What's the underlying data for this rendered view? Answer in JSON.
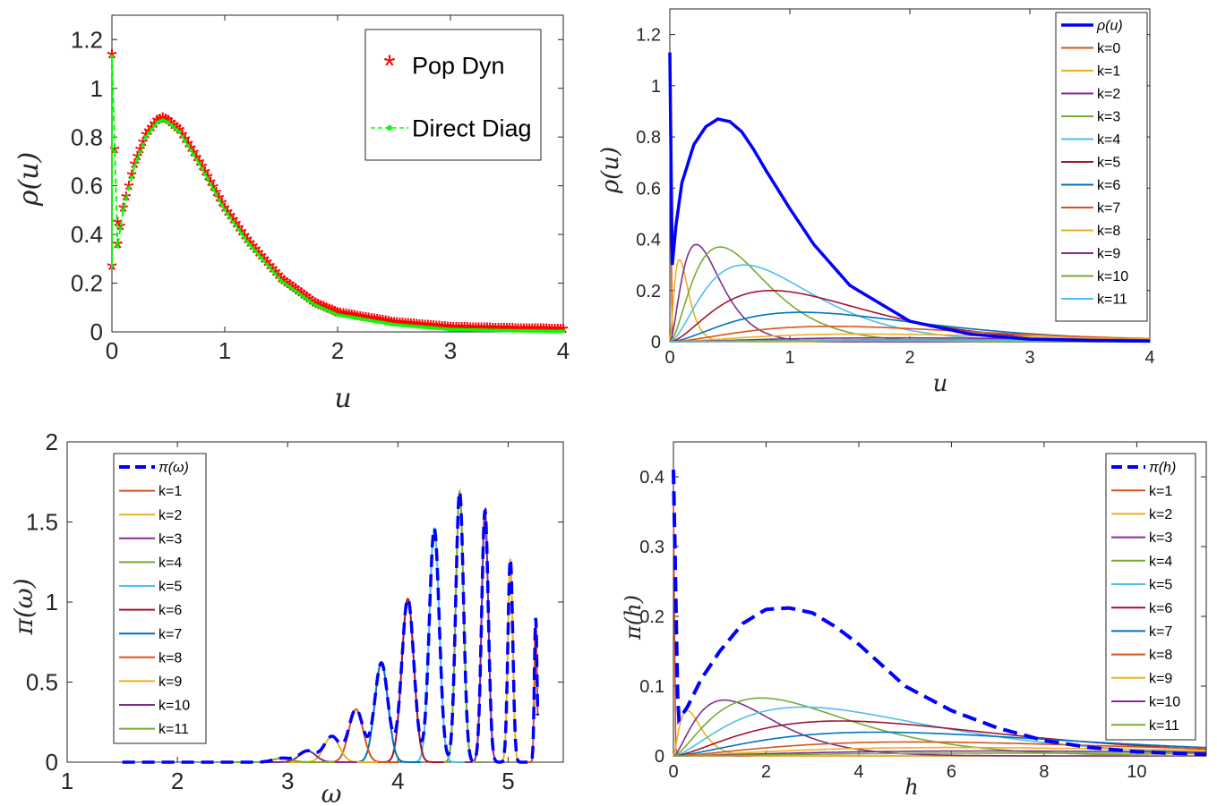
{
  "figure": {
    "palette": [
      "#D95319",
      "#EDB120",
      "#7E2F8E",
      "#77AC30",
      "#4DBEEE",
      "#A2142F",
      "#0072BD"
    ]
  },
  "chart_data": [
    {
      "type": "line",
      "xlabel": "u",
      "ylabel": "ρ(u)",
      "xlim": [
        0,
        4
      ],
      "ylim": [
        0,
        1.3
      ],
      "xticks": [
        "0",
        "1",
        "2",
        "3",
        "4"
      ],
      "yticks": [
        "0",
        "0.2",
        "0.4",
        "0.6",
        "0.8",
        "1",
        "1.2"
      ],
      "grid": false,
      "legend_position": "top-right",
      "series": [
        {
          "name": "Pop Dyn",
          "style": "red-asterisk-markers",
          "color": "#FF0000",
          "x": [
            0,
            0.05,
            0.1,
            0.2,
            0.3,
            0.4,
            0.45,
            0.5,
            0.6,
            0.8,
            1.0,
            1.2,
            1.5,
            1.8,
            2.0,
            2.5,
            3.0,
            3.5,
            4.0
          ],
          "y": [
            1.13,
            0.35,
            0.5,
            0.68,
            0.8,
            0.86,
            0.87,
            0.86,
            0.82,
            0.67,
            0.5,
            0.37,
            0.21,
            0.11,
            0.07,
            0.03,
            0.01,
            0.005,
            0.002
          ]
        },
        {
          "name": "Direct Diag",
          "style": "green-dashed-dots",
          "color": "#00FF00",
          "x": [
            0,
            0.05,
            0.1,
            0.2,
            0.3,
            0.4,
            0.45,
            0.5,
            0.6,
            0.8,
            1.0,
            1.2,
            1.5,
            1.8,
            2.0,
            2.5,
            3.0,
            3.5,
            4.0
          ],
          "y": [
            1.13,
            0.35,
            0.5,
            0.68,
            0.8,
            0.86,
            0.87,
            0.86,
            0.82,
            0.67,
            0.5,
            0.37,
            0.21,
            0.11,
            0.07,
            0.03,
            0.01,
            0.005,
            0.002
          ]
        }
      ]
    },
    {
      "type": "line",
      "xlabel": "u",
      "ylabel": "ρ(u)",
      "xlim": [
        0,
        4
      ],
      "ylim": [
        0,
        1.3
      ],
      "xticks": [
        "0",
        "1",
        "2",
        "3",
        "4"
      ],
      "yticks": [
        "0",
        "0.2",
        "0.4",
        "0.6",
        "0.8",
        "1",
        "1.2"
      ],
      "grid": false,
      "legend_position": "top-right",
      "total": {
        "name": "ρ(u)",
        "color": "#0000FF",
        "x": [
          0,
          0.02,
          0.05,
          0.1,
          0.2,
          0.3,
          0.4,
          0.5,
          0.6,
          0.7,
          0.8,
          1.0,
          1.2,
          1.5,
          2.0,
          2.5,
          3.0,
          3.5,
          4.0
        ],
        "y": [
          1.13,
          0.3,
          0.45,
          0.62,
          0.77,
          0.84,
          0.87,
          0.86,
          0.82,
          0.75,
          0.67,
          0.52,
          0.38,
          0.22,
          0.08,
          0.03,
          0.01,
          0.005,
          0.002
        ]
      },
      "components": [
        {
          "name": "k=0",
          "peak_x": 0,
          "peak_y": 0.92
        },
        {
          "name": "k=1",
          "peak_x": 0.08,
          "peak_y": 0.32
        },
        {
          "name": "k=2",
          "peak_x": 0.22,
          "peak_y": 0.38
        },
        {
          "name": "k=3",
          "peak_x": 0.42,
          "peak_y": 0.37
        },
        {
          "name": "k=4",
          "peak_x": 0.62,
          "peak_y": 0.3
        },
        {
          "name": "k=5",
          "peak_x": 0.85,
          "peak_y": 0.2
        },
        {
          "name": "k=6",
          "peak_x": 1.1,
          "peak_y": 0.115
        },
        {
          "name": "k=7",
          "peak_x": 1.35,
          "peak_y": 0.06
        },
        {
          "name": "k=8",
          "peak_x": 1.6,
          "peak_y": 0.03
        },
        {
          "name": "k=9",
          "peak_x": 1.85,
          "peak_y": 0.015
        },
        {
          "name": "k=10",
          "peak_x": 2.1,
          "peak_y": 0.008
        },
        {
          "name": "k=11",
          "peak_x": 2.35,
          "peak_y": 0.004
        }
      ]
    },
    {
      "type": "line",
      "xlabel": "ω",
      "ylabel": "π(ω)",
      "xlim": [
        1,
        5.5
      ],
      "ylim": [
        0,
        2
      ],
      "xticks": [
        "1",
        "2",
        "3",
        "4",
        "5"
      ],
      "yticks": [
        "0",
        "0.5",
        "1",
        "1.5",
        "2"
      ],
      "grid": false,
      "legend_position": "top-left",
      "total": {
        "name": "π(ω)",
        "color": "#0000FF",
        "style": "dashed",
        "x_start": 1.5,
        "x_end": 5.27
      },
      "components": [
        {
          "name": "k=1",
          "peak_x": 5.25,
          "peak_y": 0.9,
          "width": 0.012
        },
        {
          "name": "k=2",
          "peak_x": 5.02,
          "peak_y": 1.27,
          "width": 0.022
        },
        {
          "name": "k=3",
          "peak_x": 4.79,
          "peak_y": 1.57,
          "width": 0.03
        },
        {
          "name": "k=4",
          "peak_x": 4.56,
          "peak_y": 1.69,
          "width": 0.035
        },
        {
          "name": "k=5",
          "peak_x": 4.33,
          "peak_y": 1.46,
          "width": 0.045
        },
        {
          "name": "k=6",
          "peak_x": 4.09,
          "peak_y": 1.02,
          "width": 0.055
        },
        {
          "name": "k=7",
          "peak_x": 3.85,
          "peak_y": 0.62,
          "width": 0.06
        },
        {
          "name": "k=8",
          "peak_x": 3.62,
          "peak_y": 0.33,
          "width": 0.065
        },
        {
          "name": "k=9",
          "peak_x": 3.4,
          "peak_y": 0.16,
          "width": 0.07
        },
        {
          "name": "k=10",
          "peak_x": 3.18,
          "peak_y": 0.07,
          "width": 0.075
        },
        {
          "name": "k=11",
          "peak_x": 2.95,
          "peak_y": 0.025,
          "width": 0.08
        }
      ]
    },
    {
      "type": "line",
      "xlabel": "h",
      "ylabel": "π(h)",
      "xlim": [
        0,
        11.5
      ],
      "ylim": [
        0,
        0.45
      ],
      "xticks": [
        "0",
        "2",
        "4",
        "6",
        "8",
        "10"
      ],
      "yticks": [
        "0",
        "0.1",
        "0.2",
        "0.3",
        "0.4"
      ],
      "grid": false,
      "legend_position": "top-right",
      "total": {
        "name": "π(h)",
        "color": "#0000FF",
        "style": "dashed",
        "x": [
          0,
          0.1,
          0.3,
          0.6,
          1.0,
          1.5,
          2.0,
          2.5,
          3.0,
          3.5,
          4.0,
          4.5,
          5.0,
          6.0,
          7.0,
          8.0,
          9.0,
          10.0,
          11.5
        ],
        "y": [
          0.41,
          0.05,
          0.07,
          0.11,
          0.15,
          0.19,
          0.21,
          0.212,
          0.205,
          0.185,
          0.16,
          0.13,
          0.1,
          0.065,
          0.04,
          0.022,
          0.012,
          0.006,
          0.002
        ]
      },
      "components": [
        {
          "name": "k=1",
          "peak_x": 0.02,
          "peak_y": 0.37
        },
        {
          "name": "k=2",
          "peak_x": 0.3,
          "peak_y": 0.065
        },
        {
          "name": "k=3",
          "peak_x": 1.1,
          "peak_y": 0.08
        },
        {
          "name": "k=4",
          "peak_x": 1.9,
          "peak_y": 0.083
        },
        {
          "name": "k=5",
          "peak_x": 2.8,
          "peak_y": 0.07
        },
        {
          "name": "k=6",
          "peak_x": 3.6,
          "peak_y": 0.05
        },
        {
          "name": "k=7",
          "peak_x": 4.4,
          "peak_y": 0.034
        },
        {
          "name": "k=8",
          "peak_x": 5.2,
          "peak_y": 0.02
        },
        {
          "name": "k=9",
          "peak_x": 6.0,
          "peak_y": 0.012
        },
        {
          "name": "k=10",
          "peak_x": 6.8,
          "peak_y": 0.007
        },
        {
          "name": "k=11",
          "peak_x": 7.6,
          "peak_y": 0.004
        }
      ]
    }
  ]
}
